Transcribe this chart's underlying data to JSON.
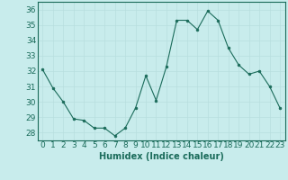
{
  "x": [
    0,
    1,
    2,
    3,
    4,
    5,
    6,
    7,
    8,
    9,
    10,
    11,
    12,
    13,
    14,
    15,
    16,
    17,
    18,
    19,
    20,
    21,
    22,
    23
  ],
  "y": [
    32.1,
    30.9,
    30.0,
    28.9,
    28.8,
    28.3,
    28.3,
    27.8,
    28.3,
    29.6,
    31.7,
    30.1,
    32.3,
    35.3,
    35.3,
    34.7,
    35.9,
    35.3,
    33.5,
    32.4,
    31.8,
    32.0,
    31.0,
    29.6
  ],
  "xlabel": "Humidex (Indice chaleur)",
  "ylim": [
    27.5,
    36.5
  ],
  "xlim": [
    -0.5,
    23.5
  ],
  "yticks": [
    28,
    29,
    30,
    31,
    32,
    33,
    34,
    35,
    36
  ],
  "xticks": [
    0,
    1,
    2,
    3,
    4,
    5,
    6,
    7,
    8,
    9,
    10,
    11,
    12,
    13,
    14,
    15,
    16,
    17,
    18,
    19,
    20,
    21,
    22,
    23
  ],
  "line_color": "#1a6b5a",
  "marker_color": "#1a6b5a",
  "bg_color": "#c8ecec",
  "grid_color": "#b8dede",
  "tick_label_color": "#1a6b5a",
  "xlabel_color": "#1a6b5a",
  "xlabel_fontsize": 7,
  "tick_fontsize": 6.5
}
